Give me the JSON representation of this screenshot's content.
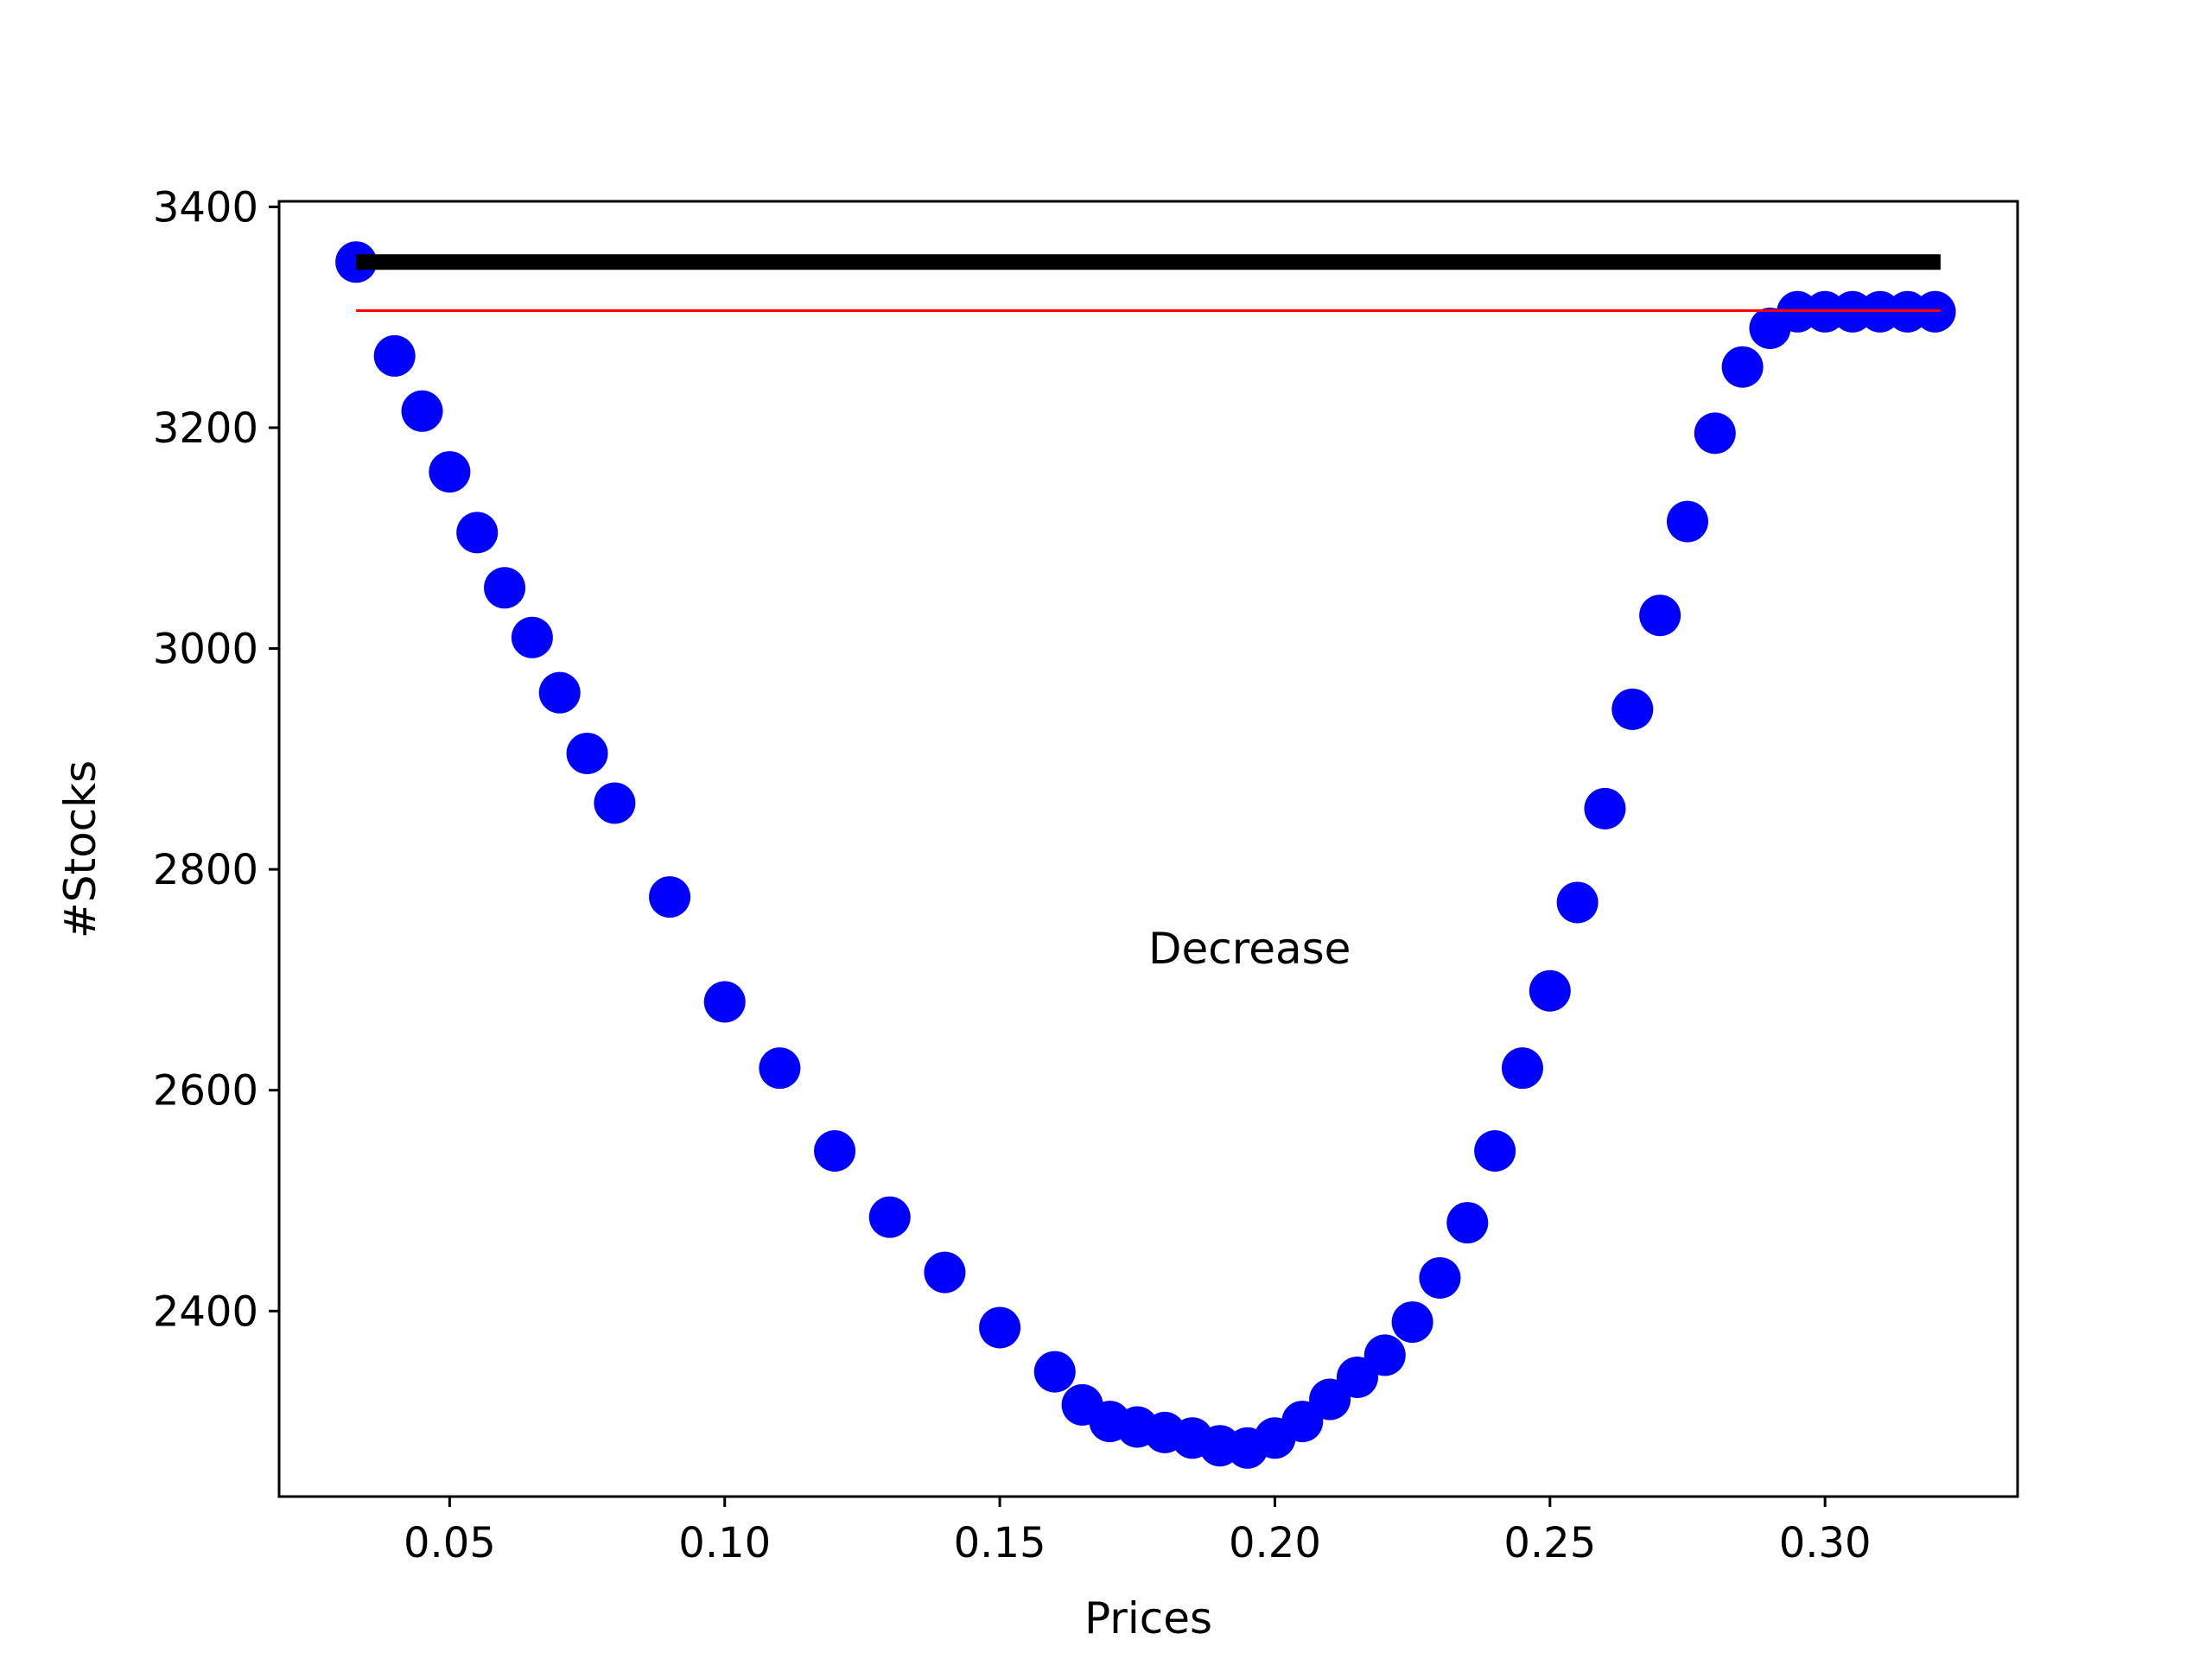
{
  "chart_data": {
    "type": "scatter",
    "title": "",
    "xlabel": "Prices",
    "ylabel": "#Stocks",
    "xlim": [
      0.019,
      0.335
    ],
    "ylim": [
      2232,
      3405
    ],
    "xticks": [
      0.05,
      0.1,
      0.15,
      0.2,
      0.25,
      0.3
    ],
    "xtick_labels": [
      "0.05",
      "0.10",
      "0.15",
      "0.20",
      "0.25",
      "0.30"
    ],
    "yticks": [
      2400,
      2600,
      2800,
      3000,
      3200,
      3400
    ],
    "ytick_labels": [
      "2400",
      "2600",
      "2800",
      "3000",
      "3200",
      "3400"
    ],
    "grid": false,
    "annotation": {
      "text": "Decrease",
      "x": 0.177,
      "y": 2715
    },
    "series": [
      {
        "style": "markers",
        "color": "#0000ff",
        "x": [
          0.033,
          0.04,
          0.045,
          0.05,
          0.055,
          0.06,
          0.065,
          0.07,
          0.075,
          0.08,
          0.09,
          0.1,
          0.11,
          0.12,
          0.13,
          0.14,
          0.15,
          0.16,
          0.165,
          0.17,
          0.175,
          0.18,
          0.185,
          0.19,
          0.195,
          0.2,
          0.205,
          0.21,
          0.215,
          0.22,
          0.225,
          0.23,
          0.235,
          0.24,
          0.245,
          0.25,
          0.255,
          0.26,
          0.265,
          0.27,
          0.275,
          0.28,
          0.285,
          0.29,
          0.295,
          0.3,
          0.305,
          0.31,
          0.315,
          0.32
        ],
        "y": [
          3350,
          3265,
          3215,
          3160,
          3105,
          3055,
          3010,
          2960,
          2905,
          2860,
          2775,
          2680,
          2620,
          2545,
          2485,
          2435,
          2385,
          2345,
          2315,
          2300,
          2295,
          2290,
          2285,
          2278,
          2276,
          2285,
          2300,
          2320,
          2340,
          2360,
          2390,
          2430,
          2480,
          2545,
          2620,
          2690,
          2770,
          2855,
          2945,
          3030,
          3115,
          3195,
          3255,
          3290,
          3305,
          3305,
          3305,
          3305,
          3305,
          3305
        ]
      },
      {
        "style": "line",
        "color": "#000000",
        "x": [
          0.033,
          0.321
        ],
        "y": [
          3350,
          3350
        ]
      },
      {
        "style": "line",
        "color": "#ff0000",
        "x": [
          0.033,
          0.321
        ],
        "y": [
          3306,
          3306
        ]
      }
    ]
  }
}
